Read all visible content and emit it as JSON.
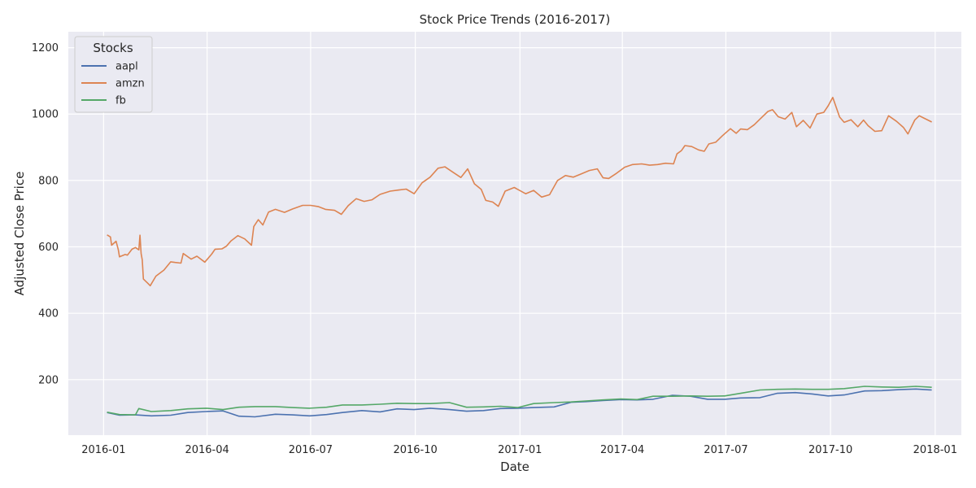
{
  "chart_data": {
    "type": "line",
    "title": "Stock Price Trends (2016-2017)",
    "xlabel": "Date",
    "ylabel": "Adjusted Close Price",
    "xlim": [
      "2015-12-01",
      "2018-01-24"
    ],
    "ylim": [
      33,
      1248
    ],
    "x_ticks": [
      {
        "date": "2016-01-01",
        "label": "2016-01"
      },
      {
        "date": "2016-04-01",
        "label": "2016-04"
      },
      {
        "date": "2016-07-01",
        "label": "2016-07"
      },
      {
        "date": "2016-10-01",
        "label": "2016-10"
      },
      {
        "date": "2017-01-01",
        "label": "2017-01"
      },
      {
        "date": "2017-04-01",
        "label": "2017-04"
      },
      {
        "date": "2017-07-01",
        "label": "2017-07"
      },
      {
        "date": "2017-10-01",
        "label": "2017-10"
      },
      {
        "date": "2018-01-01",
        "label": "2018-01"
      }
    ],
    "y_ticks": [
      200,
      400,
      600,
      800,
      1000,
      1200
    ],
    "grid": true,
    "background": "#eaeaf2",
    "legend": {
      "title": "Stocks",
      "position": "top-left"
    },
    "series": [
      {
        "name": "aapl",
        "color": "#4c72b0",
        "points": [
          [
            "2016-01-04",
            101
          ],
          [
            "2016-01-15",
            93
          ],
          [
            "2016-01-29",
            94
          ],
          [
            "2016-02-12",
            91
          ],
          [
            "2016-02-29",
            93
          ],
          [
            "2016-03-15",
            101
          ],
          [
            "2016-03-31",
            104
          ],
          [
            "2016-04-15",
            106
          ],
          [
            "2016-04-29",
            90
          ],
          [
            "2016-05-13",
            88
          ],
          [
            "2016-05-31",
            96
          ],
          [
            "2016-06-15",
            94
          ],
          [
            "2016-06-30",
            91
          ],
          [
            "2016-07-15",
            95
          ],
          [
            "2016-07-29",
            101
          ],
          [
            "2016-08-15",
            107
          ],
          [
            "2016-08-31",
            103
          ],
          [
            "2016-09-15",
            112
          ],
          [
            "2016-09-30",
            110
          ],
          [
            "2016-10-14",
            114
          ],
          [
            "2016-10-31",
            110
          ],
          [
            "2016-11-15",
            105
          ],
          [
            "2016-11-30",
            107
          ],
          [
            "2016-12-15",
            113
          ],
          [
            "2016-12-30",
            114
          ],
          [
            "2017-01-13",
            116
          ],
          [
            "2017-01-31",
            118
          ],
          [
            "2017-02-15",
            132
          ],
          [
            "2017-02-28",
            134
          ],
          [
            "2017-03-15",
            137
          ],
          [
            "2017-03-31",
            140
          ],
          [
            "2017-04-14",
            139
          ],
          [
            "2017-04-28",
            141
          ],
          [
            "2017-05-15",
            153
          ],
          [
            "2017-05-31",
            150
          ],
          [
            "2017-06-15",
            141
          ],
          [
            "2017-06-30",
            141
          ],
          [
            "2017-07-14",
            145
          ],
          [
            "2017-07-31",
            146
          ],
          [
            "2017-08-15",
            159
          ],
          [
            "2017-08-31",
            161
          ],
          [
            "2017-09-15",
            157
          ],
          [
            "2017-09-29",
            151
          ],
          [
            "2017-10-13",
            154
          ],
          [
            "2017-10-31",
            166
          ],
          [
            "2017-11-15",
            167
          ],
          [
            "2017-11-30",
            170
          ],
          [
            "2017-12-15",
            172
          ],
          [
            "2017-12-29",
            169
          ]
        ]
      },
      {
        "name": "amzn",
        "color": "#dd8452",
        "points": [
          [
            "2016-01-04",
            636
          ],
          [
            "2016-01-07",
            630
          ],
          [
            "2016-01-08",
            605
          ],
          [
            "2016-01-12",
            617
          ],
          [
            "2016-01-14",
            591
          ],
          [
            "2016-01-15",
            570
          ],
          [
            "2016-01-20",
            577
          ],
          [
            "2016-01-22",
            575
          ],
          [
            "2016-01-26",
            593
          ],
          [
            "2016-01-29",
            598
          ],
          [
            "2016-02-01",
            591
          ],
          [
            "2016-02-02",
            635
          ],
          [
            "2016-02-03",
            580
          ],
          [
            "2016-02-04",
            561
          ],
          [
            "2016-02-05",
            503
          ],
          [
            "2016-02-09",
            490
          ],
          [
            "2016-02-11",
            483
          ],
          [
            "2016-02-16",
            512
          ],
          [
            "2016-02-23",
            530
          ],
          [
            "2016-02-29",
            555
          ],
          [
            "2016-03-04",
            553
          ],
          [
            "2016-03-09",
            551
          ],
          [
            "2016-03-11",
            580
          ],
          [
            "2016-03-18",
            563
          ],
          [
            "2016-03-23",
            572
          ],
          [
            "2016-03-30",
            554
          ],
          [
            "2016-04-05",
            578
          ],
          [
            "2016-04-08",
            593
          ],
          [
            "2016-04-14",
            594
          ],
          [
            "2016-04-18",
            602
          ],
          [
            "2016-04-22",
            618
          ],
          [
            "2016-04-28",
            634
          ],
          [
            "2016-05-04",
            624
          ],
          [
            "2016-05-10",
            605
          ],
          [
            "2016-05-12",
            661
          ],
          [
            "2016-05-16",
            682
          ],
          [
            "2016-05-20",
            666
          ],
          [
            "2016-05-25",
            705
          ],
          [
            "2016-05-31",
            713
          ],
          [
            "2016-06-08",
            704
          ],
          [
            "2016-06-15",
            714
          ],
          [
            "2016-06-24",
            725
          ],
          [
            "2016-07-01",
            725
          ],
          [
            "2016-07-08",
            721
          ],
          [
            "2016-07-14",
            713
          ],
          [
            "2016-07-22",
            710
          ],
          [
            "2016-07-28",
            698
          ],
          [
            "2016-08-03",
            724
          ],
          [
            "2016-08-10",
            745
          ],
          [
            "2016-08-17",
            737
          ],
          [
            "2016-08-24",
            742
          ],
          [
            "2016-08-31",
            758
          ],
          [
            "2016-09-09",
            768
          ],
          [
            "2016-09-16",
            771
          ],
          [
            "2016-09-23",
            774
          ],
          [
            "2016-09-30",
            760
          ],
          [
            "2016-10-07",
            793
          ],
          [
            "2016-10-14",
            810
          ],
          [
            "2016-10-21",
            837
          ],
          [
            "2016-10-27",
            841
          ],
          [
            "2016-11-03",
            825
          ],
          [
            "2016-11-10",
            809
          ],
          [
            "2016-11-16",
            835
          ],
          [
            "2016-11-22",
            790
          ],
          [
            "2016-11-28",
            773
          ],
          [
            "2016-12-02",
            740
          ],
          [
            "2016-12-08",
            735
          ],
          [
            "2016-12-13",
            722
          ],
          [
            "2016-12-19",
            768
          ],
          [
            "2016-12-27",
            779
          ],
          [
            "2017-01-06",
            760
          ],
          [
            "2017-01-13",
            770
          ],
          [
            "2017-01-20",
            750
          ],
          [
            "2017-01-27",
            757
          ],
          [
            "2017-02-03",
            800
          ],
          [
            "2017-02-10",
            815
          ],
          [
            "2017-02-17",
            810
          ],
          [
            "2017-02-24",
            820
          ],
          [
            "2017-03-03",
            830
          ],
          [
            "2017-03-10",
            835
          ],
          [
            "2017-03-15",
            808
          ],
          [
            "2017-03-20",
            806
          ],
          [
            "2017-03-27",
            822
          ],
          [
            "2017-04-03",
            840
          ],
          [
            "2017-04-10",
            848
          ],
          [
            "2017-04-18",
            850
          ],
          [
            "2017-04-25",
            846
          ],
          [
            "2017-05-02",
            848
          ],
          [
            "2017-05-09",
            852
          ],
          [
            "2017-05-16",
            850
          ],
          [
            "2017-05-19",
            880
          ],
          [
            "2017-05-23",
            890
          ],
          [
            "2017-05-26",
            905
          ],
          [
            "2017-06-01",
            902
          ],
          [
            "2017-06-07",
            892
          ],
          [
            "2017-06-12",
            888
          ],
          [
            "2017-06-16",
            910
          ],
          [
            "2017-06-22",
            915
          ],
          [
            "2017-06-28",
            935
          ],
          [
            "2017-07-05",
            956
          ],
          [
            "2017-07-10",
            942
          ],
          [
            "2017-07-14",
            955
          ],
          [
            "2017-07-20",
            953
          ],
          [
            "2017-07-26",
            968
          ],
          [
            "2017-07-31",
            985
          ],
          [
            "2017-08-07",
            1008
          ],
          [
            "2017-08-11",
            1013
          ],
          [
            "2017-08-16",
            992
          ],
          [
            "2017-08-22",
            985
          ],
          [
            "2017-08-28",
            1005
          ],
          [
            "2017-09-01",
            962
          ],
          [
            "2017-09-07",
            981
          ],
          [
            "2017-09-13",
            958
          ],
          [
            "2017-09-19",
            1000
          ],
          [
            "2017-09-25",
            1005
          ],
          [
            "2017-09-29",
            1025
          ],
          [
            "2017-10-03",
            1050
          ],
          [
            "2017-10-09",
            991
          ],
          [
            "2017-10-13",
            975
          ],
          [
            "2017-10-19",
            983
          ],
          [
            "2017-10-25",
            962
          ],
          [
            "2017-10-30",
            982
          ],
          [
            "2017-11-03",
            965
          ],
          [
            "2017-11-09",
            948
          ],
          [
            "2017-11-15",
            950
          ],
          [
            "2017-11-21",
            995
          ],
          [
            "2017-11-28",
            978
          ],
          [
            "2017-12-04",
            960
          ],
          [
            "2017-12-08",
            940
          ],
          [
            "2017-12-14",
            982
          ],
          [
            "2017-12-18",
            995
          ],
          [
            "2017-12-22",
            988
          ],
          [
            "2017-12-29",
            976
          ]
        ]
      },
      {
        "name": "fb",
        "color": "#55a868",
        "points": [
          [
            "2016-01-04",
            102
          ],
          [
            "2016-01-15",
            95
          ],
          [
            "2016-01-29",
            94
          ],
          [
            "2016-02-01",
            113
          ],
          [
            "2016-02-12",
            104
          ],
          [
            "2016-02-29",
            107
          ],
          [
            "2016-03-15",
            112
          ],
          [
            "2016-03-31",
            114
          ],
          [
            "2016-04-15",
            110
          ],
          [
            "2016-04-29",
            117
          ],
          [
            "2016-05-13",
            119
          ],
          [
            "2016-05-31",
            119
          ],
          [
            "2016-06-15",
            116
          ],
          [
            "2016-06-30",
            114
          ],
          [
            "2016-07-15",
            117
          ],
          [
            "2016-07-29",
            124
          ],
          [
            "2016-08-15",
            124
          ],
          [
            "2016-08-31",
            126
          ],
          [
            "2016-09-15",
            129
          ],
          [
            "2016-09-30",
            128
          ],
          [
            "2016-10-14",
            128
          ],
          [
            "2016-10-31",
            131
          ],
          [
            "2016-11-15",
            117
          ],
          [
            "2016-11-30",
            118
          ],
          [
            "2016-12-15",
            120
          ],
          [
            "2016-12-30",
            116
          ],
          [
            "2017-01-13",
            128
          ],
          [
            "2017-01-31",
            131
          ],
          [
            "2017-02-15",
            133
          ],
          [
            "2017-02-28",
            136
          ],
          [
            "2017-03-15",
            139
          ],
          [
            "2017-03-31",
            142
          ],
          [
            "2017-04-14",
            140
          ],
          [
            "2017-04-28",
            150
          ],
          [
            "2017-05-15",
            150
          ],
          [
            "2017-05-31",
            151
          ],
          [
            "2017-06-15",
            150
          ],
          [
            "2017-06-30",
            151
          ],
          [
            "2017-07-14",
            159
          ],
          [
            "2017-07-31",
            169
          ],
          [
            "2017-08-15",
            171
          ],
          [
            "2017-08-31",
            172
          ],
          [
            "2017-09-15",
            171
          ],
          [
            "2017-09-29",
            171
          ],
          [
            "2017-10-13",
            173
          ],
          [
            "2017-10-31",
            180
          ],
          [
            "2017-11-15",
            178
          ],
          [
            "2017-11-30",
            177
          ],
          [
            "2017-12-15",
            180
          ],
          [
            "2017-12-29",
            177
          ]
        ]
      }
    ]
  }
}
